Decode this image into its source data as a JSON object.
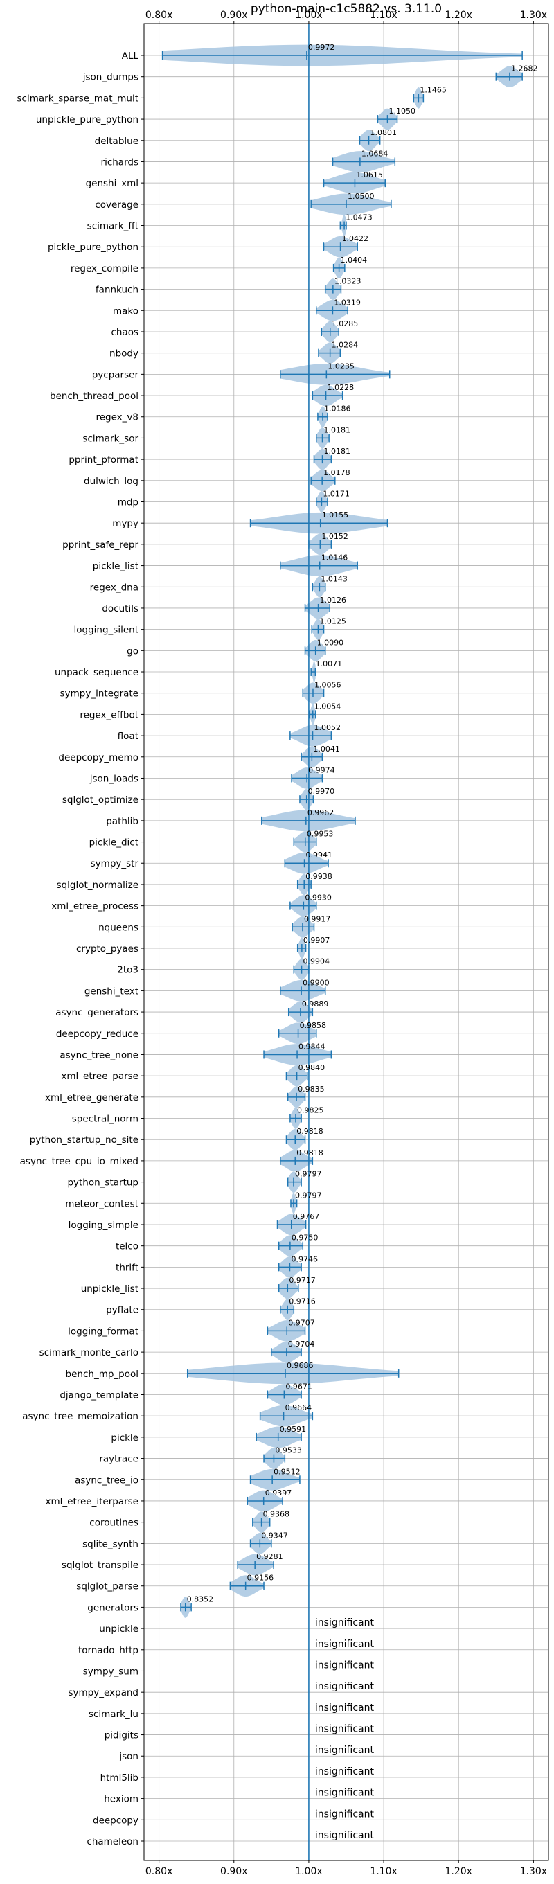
{
  "chart_data": {
    "type": "violin",
    "title": "python-main-c1c5882 vs. 3.11.0",
    "xlabel": "",
    "ylabel": "",
    "xlim": [
      0.78,
      1.32
    ],
    "xticks": [
      0.8,
      0.9,
      1.0,
      1.1,
      1.2,
      1.3
    ],
    "xtick_labels": [
      "0.80x",
      "0.90x",
      "1.00x",
      "1.10x",
      "1.20x",
      "1.30x"
    ],
    "grid": true,
    "reference_line": 1.0,
    "insignificant_label": "insignificant",
    "benchmarks": [
      {
        "name": "ALL",
        "value": 0.9972,
        "min": 0.8046,
        "max": 1.285
      },
      {
        "name": "json_dumps",
        "value": 1.2682,
        "min": 1.25,
        "max": 1.285
      },
      {
        "name": "scimark_sparse_mat_mult",
        "value": 1.1465,
        "min": 1.14,
        "max": 1.153
      },
      {
        "name": "unpickle_pure_python",
        "value": 1.105,
        "min": 1.092,
        "max": 1.118
      },
      {
        "name": "deltablue",
        "value": 1.0801,
        "min": 1.068,
        "max": 1.095
      },
      {
        "name": "richards",
        "value": 1.0684,
        "min": 1.032,
        "max": 1.115
      },
      {
        "name": "genshi_xml",
        "value": 1.0615,
        "min": 1.02,
        "max": 1.102
      },
      {
        "name": "coverage",
        "value": 1.05,
        "min": 1.003,
        "max": 1.11
      },
      {
        "name": "scimark_fft",
        "value": 1.0473,
        "min": 1.042,
        "max": 1.05
      },
      {
        "name": "pickle_pure_python",
        "value": 1.0422,
        "min": 1.02,
        "max": 1.065
      },
      {
        "name": "regex_compile",
        "value": 1.0404,
        "min": 1.033,
        "max": 1.048
      },
      {
        "name": "fannkuch",
        "value": 1.0323,
        "min": 1.022,
        "max": 1.043
      },
      {
        "name": "mako",
        "value": 1.0319,
        "min": 1.01,
        "max": 1.052
      },
      {
        "name": "chaos",
        "value": 1.0285,
        "min": 1.017,
        "max": 1.04
      },
      {
        "name": "nbody",
        "value": 1.0284,
        "min": 1.013,
        "max": 1.042
      },
      {
        "name": "pycparser",
        "value": 1.0235,
        "min": 0.962,
        "max": 1.108
      },
      {
        "name": "bench_thread_pool",
        "value": 1.0228,
        "min": 1.005,
        "max": 1.045
      },
      {
        "name": "regex_v8",
        "value": 1.0186,
        "min": 1.012,
        "max": 1.025
      },
      {
        "name": "scimark_sor",
        "value": 1.0181,
        "min": 1.01,
        "max": 1.027
      },
      {
        "name": "pprint_pformat",
        "value": 1.0181,
        "min": 1.007,
        "max": 1.03
      },
      {
        "name": "dulwich_log",
        "value": 1.0178,
        "min": 1.003,
        "max": 1.035
      },
      {
        "name": "mdp",
        "value": 1.0171,
        "min": 1.01,
        "max": 1.025
      },
      {
        "name": "mypy",
        "value": 1.0155,
        "min": 0.922,
        "max": 1.105
      },
      {
        "name": "pprint_safe_repr",
        "value": 1.0152,
        "min": 1.0,
        "max": 1.03
      },
      {
        "name": "pickle_list",
        "value": 1.0146,
        "min": 0.962,
        "max": 1.065
      },
      {
        "name": "regex_dna",
        "value": 1.0143,
        "min": 1.005,
        "max": 1.022
      },
      {
        "name": "docutils",
        "value": 1.0126,
        "min": 0.995,
        "max": 1.028
      },
      {
        "name": "logging_silent",
        "value": 1.0125,
        "min": 1.004,
        "max": 1.02
      },
      {
        "name": "go",
        "value": 1.009,
        "min": 0.995,
        "max": 1.022
      },
      {
        "name": "unpack_sequence",
        "value": 1.0071,
        "min": 1.003,
        "max": 1.009
      },
      {
        "name": "sympy_integrate",
        "value": 1.0056,
        "min": 0.992,
        "max": 1.02
      },
      {
        "name": "regex_effbot",
        "value": 1.0054,
        "min": 1.001,
        "max": 1.009
      },
      {
        "name": "float",
        "value": 1.0052,
        "min": 0.975,
        "max": 1.03
      },
      {
        "name": "deepcopy_memo",
        "value": 1.0041,
        "min": 0.99,
        "max": 1.018
      },
      {
        "name": "json_loads",
        "value": 0.9974,
        "min": 0.977,
        "max": 1.018
      },
      {
        "name": "sqlglot_optimize",
        "value": 0.997,
        "min": 0.988,
        "max": 1.006
      },
      {
        "name": "pathlib",
        "value": 0.9962,
        "min": 0.937,
        "max": 1.062
      },
      {
        "name": "pickle_dict",
        "value": 0.9953,
        "min": 0.98,
        "max": 1.01
      },
      {
        "name": "sympy_str",
        "value": 0.9941,
        "min": 0.968,
        "max": 1.026
      },
      {
        "name": "sqlglot_normalize",
        "value": 0.9938,
        "min": 0.985,
        "max": 1.003
      },
      {
        "name": "xml_etree_process",
        "value": 0.993,
        "min": 0.975,
        "max": 1.01
      },
      {
        "name": "nqueens",
        "value": 0.9917,
        "min": 0.978,
        "max": 1.007
      },
      {
        "name": "crypto_pyaes",
        "value": 0.9907,
        "min": 0.985,
        "max": 0.996
      },
      {
        "name": "2to3",
        "value": 0.9904,
        "min": 0.98,
        "max": 1.0
      },
      {
        "name": "genshi_text",
        "value": 0.99,
        "min": 0.962,
        "max": 1.022
      },
      {
        "name": "async_generators",
        "value": 0.9889,
        "min": 0.973,
        "max": 1.005
      },
      {
        "name": "deepcopy_reduce",
        "value": 0.9858,
        "min": 0.96,
        "max": 1.01
      },
      {
        "name": "async_tree_none",
        "value": 0.9844,
        "min": 0.94,
        "max": 1.03
      },
      {
        "name": "xml_etree_parse",
        "value": 0.984,
        "min": 0.97,
        "max": 0.998
      },
      {
        "name": "xml_etree_generate",
        "value": 0.9835,
        "min": 0.972,
        "max": 0.995
      },
      {
        "name": "spectral_norm",
        "value": 0.9825,
        "min": 0.975,
        "max": 0.99
      },
      {
        "name": "python_startup_no_site",
        "value": 0.9818,
        "min": 0.97,
        "max": 0.995
      },
      {
        "name": "async_tree_cpu_io_mixed",
        "value": 0.9818,
        "min": 0.962,
        "max": 1.005
      },
      {
        "name": "python_startup",
        "value": 0.9797,
        "min": 0.972,
        "max": 0.99
      },
      {
        "name": "meteor_contest",
        "value": 0.9797,
        "min": 0.976,
        "max": 0.984
      },
      {
        "name": "logging_simple",
        "value": 0.9767,
        "min": 0.958,
        "max": 0.996
      },
      {
        "name": "telco",
        "value": 0.975,
        "min": 0.96,
        "max": 0.992
      },
      {
        "name": "thrift",
        "value": 0.9746,
        "min": 0.96,
        "max": 0.99
      },
      {
        "name": "unpickle_list",
        "value": 0.9717,
        "min": 0.96,
        "max": 0.986
      },
      {
        "name": "pyflate",
        "value": 0.9716,
        "min": 0.962,
        "max": 0.98
      },
      {
        "name": "logging_format",
        "value": 0.9707,
        "min": 0.945,
        "max": 0.995
      },
      {
        "name": "scimark_monte_carlo",
        "value": 0.9704,
        "min": 0.95,
        "max": 0.99
      },
      {
        "name": "bench_mp_pool",
        "value": 0.9686,
        "min": 0.838,
        "max": 1.12
      },
      {
        "name": "django_template",
        "value": 0.9671,
        "min": 0.945,
        "max": 0.99
      },
      {
        "name": "async_tree_memoization",
        "value": 0.9664,
        "min": 0.935,
        "max": 1.005
      },
      {
        "name": "pickle",
        "value": 0.9591,
        "min": 0.93,
        "max": 0.99
      },
      {
        "name": "raytrace",
        "value": 0.9533,
        "min": 0.94,
        "max": 0.968
      },
      {
        "name": "async_tree_io",
        "value": 0.9512,
        "min": 0.922,
        "max": 0.988
      },
      {
        "name": "xml_etree_iterparse",
        "value": 0.9397,
        "min": 0.918,
        "max": 0.965
      },
      {
        "name": "coroutines",
        "value": 0.9368,
        "min": 0.925,
        "max": 0.948
      },
      {
        "name": "sqlite_synth",
        "value": 0.9347,
        "min": 0.922,
        "max": 0.95
      },
      {
        "name": "sqlglot_transpile",
        "value": 0.9281,
        "min": 0.905,
        "max": 0.953
      },
      {
        "name": "sqlglot_parse",
        "value": 0.9156,
        "min": 0.895,
        "max": 0.94
      },
      {
        "name": "generators",
        "value": 0.8352,
        "min": 0.829,
        "max": 0.843
      },
      {
        "name": "unpickle",
        "value": null
      },
      {
        "name": "tornado_http",
        "value": null
      },
      {
        "name": "sympy_sum",
        "value": null
      },
      {
        "name": "sympy_expand",
        "value": null
      },
      {
        "name": "scimark_lu",
        "value": null
      },
      {
        "name": "pidigits",
        "value": null
      },
      {
        "name": "json",
        "value": null
      },
      {
        "name": "html5lib",
        "value": null
      },
      {
        "name": "hexiom",
        "value": null
      },
      {
        "name": "deepcopy",
        "value": null
      },
      {
        "name": "chameleon",
        "value": null
      }
    ],
    "colors": {
      "violin": "#a7c6e0",
      "line": "#1f77b4",
      "grid": "#b0b0b0"
    }
  }
}
